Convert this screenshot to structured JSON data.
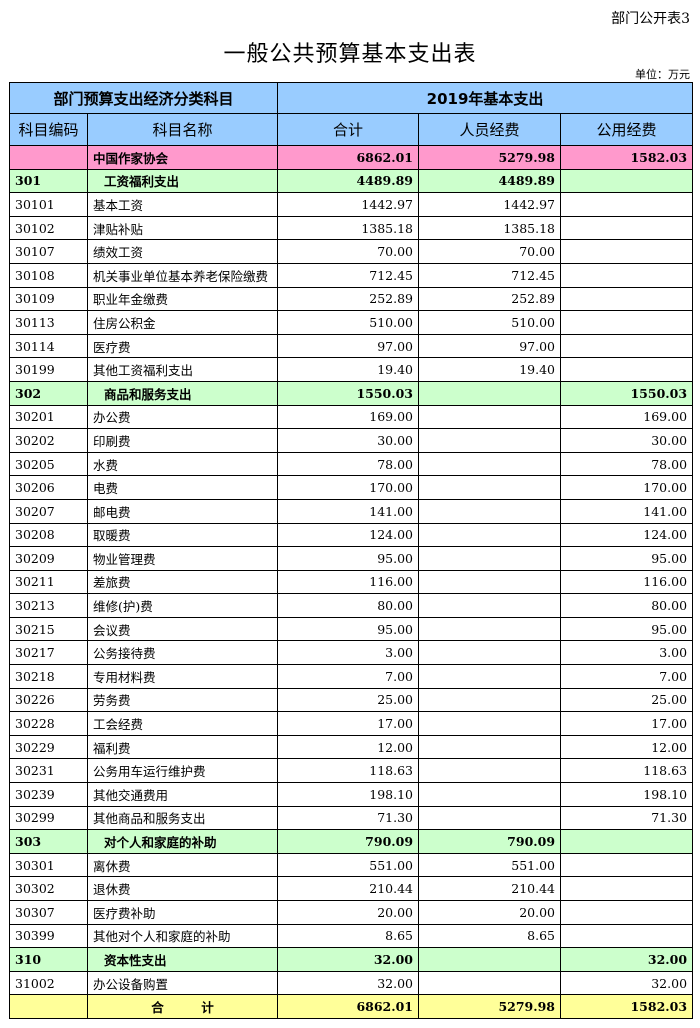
{
  "corner_label": "部门公开表3",
  "title": "一般公共预算基本支出表",
  "unit": "单位：万元",
  "header": {
    "group_left": "部门预算支出经济分类科目",
    "group_right": "2019年基本支出",
    "code": "科目编码",
    "name": "科目名称",
    "total": "合计",
    "personnel": "人员经费",
    "public": "公用经费"
  },
  "colors": {
    "header": "#99ccff",
    "org": "#ff99cc",
    "group": "#ccffcc",
    "total": "#ffff99"
  },
  "rows": [
    {
      "type": "org",
      "code": "",
      "name": "中国作家协会",
      "total": "6862.01",
      "personnel": "5279.98",
      "public": "1582.03"
    },
    {
      "type": "grp",
      "code": "301",
      "name": "工资福利支出",
      "total": "4489.89",
      "personnel": "4489.89",
      "public": ""
    },
    {
      "type": "item",
      "code": "30101",
      "name": "基本工资",
      "total": "1442.97",
      "personnel": "1442.97",
      "public": ""
    },
    {
      "type": "item",
      "code": "30102",
      "name": "津贴补贴",
      "total": "1385.18",
      "personnel": "1385.18",
      "public": ""
    },
    {
      "type": "item",
      "code": "30107",
      "name": "绩效工资",
      "total": "70.00",
      "personnel": "70.00",
      "public": ""
    },
    {
      "type": "item",
      "code": "30108",
      "name": "机关事业单位基本养老保险缴费",
      "total": "712.45",
      "personnel": "712.45",
      "public": ""
    },
    {
      "type": "item",
      "code": "30109",
      "name": "职业年金缴费",
      "total": "252.89",
      "personnel": "252.89",
      "public": ""
    },
    {
      "type": "item",
      "code": "30113",
      "name": "住房公积金",
      "total": "510.00",
      "personnel": "510.00",
      "public": ""
    },
    {
      "type": "item",
      "code": "30114",
      "name": "医疗费",
      "total": "97.00",
      "personnel": "97.00",
      "public": ""
    },
    {
      "type": "item",
      "code": "30199",
      "name": "其他工资福利支出",
      "total": "19.40",
      "personnel": "19.40",
      "public": ""
    },
    {
      "type": "grp",
      "code": "302",
      "name": "商品和服务支出",
      "total": "1550.03",
      "personnel": "",
      "public": "1550.03"
    },
    {
      "type": "item",
      "code": "30201",
      "name": "办公费",
      "total": "169.00",
      "personnel": "",
      "public": "169.00"
    },
    {
      "type": "item",
      "code": "30202",
      "name": "印刷费",
      "total": "30.00",
      "personnel": "",
      "public": "30.00"
    },
    {
      "type": "item",
      "code": "30205",
      "name": "水费",
      "total": "78.00",
      "personnel": "",
      "public": "78.00"
    },
    {
      "type": "item",
      "code": "30206",
      "name": "电费",
      "total": "170.00",
      "personnel": "",
      "public": "170.00"
    },
    {
      "type": "item",
      "code": "30207",
      "name": "邮电费",
      "total": "141.00",
      "personnel": "",
      "public": "141.00"
    },
    {
      "type": "item",
      "code": "30208",
      "name": "取暖费",
      "total": "124.00",
      "personnel": "",
      "public": "124.00"
    },
    {
      "type": "item",
      "code": "30209",
      "name": "物业管理费",
      "total": "95.00",
      "personnel": "",
      "public": "95.00"
    },
    {
      "type": "item",
      "code": "30211",
      "name": "差旅费",
      "total": "116.00",
      "personnel": "",
      "public": "116.00"
    },
    {
      "type": "item",
      "code": "30213",
      "name": "维修(护)费",
      "total": "80.00",
      "personnel": "",
      "public": "80.00"
    },
    {
      "type": "item",
      "code": "30215",
      "name": "会议费",
      "total": "95.00",
      "personnel": "",
      "public": "95.00"
    },
    {
      "type": "item",
      "code": "30217",
      "name": "公务接待费",
      "total": "3.00",
      "personnel": "",
      "public": "3.00"
    },
    {
      "type": "item",
      "code": "30218",
      "name": "专用材料费",
      "total": "7.00",
      "personnel": "",
      "public": "7.00"
    },
    {
      "type": "item",
      "code": "30226",
      "name": "劳务费",
      "total": "25.00",
      "personnel": "",
      "public": "25.00"
    },
    {
      "type": "item",
      "code": "30228",
      "name": "工会经费",
      "total": "17.00",
      "personnel": "",
      "public": "17.00"
    },
    {
      "type": "item",
      "code": "30229",
      "name": "福利费",
      "total": "12.00",
      "personnel": "",
      "public": "12.00"
    },
    {
      "type": "item",
      "code": "30231",
      "name": "公务用车运行维护费",
      "total": "118.63",
      "personnel": "",
      "public": "118.63"
    },
    {
      "type": "item",
      "code": "30239",
      "name": "其他交通费用",
      "total": "198.10",
      "personnel": "",
      "public": "198.10"
    },
    {
      "type": "item",
      "code": "30299",
      "name": "其他商品和服务支出",
      "total": "71.30",
      "personnel": "",
      "public": "71.30"
    },
    {
      "type": "grp",
      "code": "303",
      "name": "对个人和家庭的补助",
      "total": "790.09",
      "personnel": "790.09",
      "public": ""
    },
    {
      "type": "item",
      "code": "30301",
      "name": "离休费",
      "total": "551.00",
      "personnel": "551.00",
      "public": ""
    },
    {
      "type": "item",
      "code": "30302",
      "name": "退休费",
      "total": "210.44",
      "personnel": "210.44",
      "public": ""
    },
    {
      "type": "item",
      "code": "30307",
      "name": "医疗费补助",
      "total": "20.00",
      "personnel": "20.00",
      "public": ""
    },
    {
      "type": "item",
      "code": "30399",
      "name": "其他对个人和家庭的补助",
      "total": "8.65",
      "personnel": "8.65",
      "public": ""
    },
    {
      "type": "grp",
      "code": "310",
      "name": "资本性支出",
      "total": "32.00",
      "personnel": "",
      "public": "32.00"
    },
    {
      "type": "item",
      "code": "31002",
      "name": "办公设备购置",
      "total": "32.00",
      "personnel": "",
      "public": "32.00"
    },
    {
      "type": "tot",
      "code": "",
      "name": "合　　　计",
      "total": "6862.01",
      "personnel": "5279.98",
      "public": "1582.03"
    }
  ]
}
